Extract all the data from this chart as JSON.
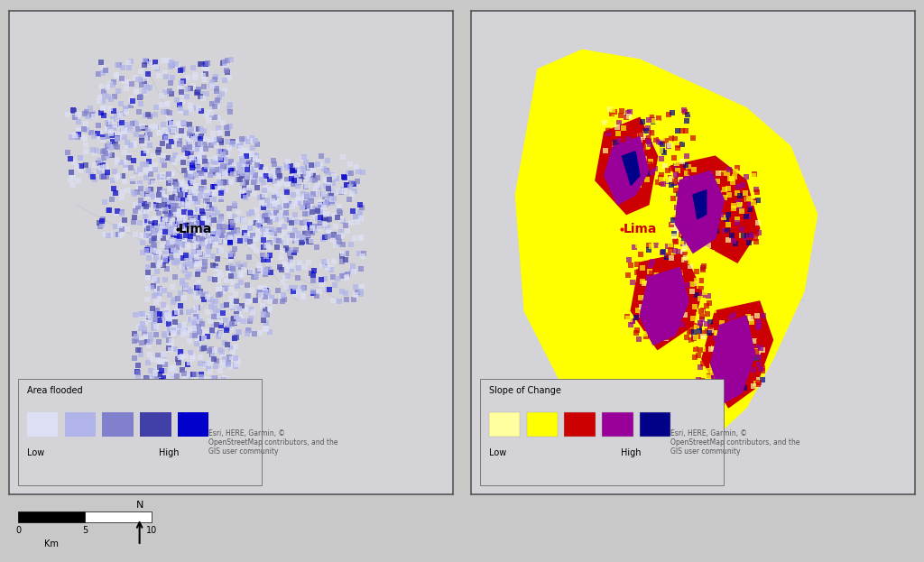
{
  "figure_width": 10.24,
  "figure_height": 6.23,
  "dpi": 100,
  "bg_color": "#c8c8c8",
  "map_bg_color": "#d4d4d8",
  "map_border_color": "#555555",
  "left_map": {
    "title": "",
    "legend_title": "Area flooded",
    "legend_colors": [
      "#dde0f5",
      "#b0b4e8",
      "#8080cc",
      "#4040a8",
      "#0000cc"
    ],
    "legend_low": "Low",
    "legend_high": "High",
    "city_label": "Lima",
    "attribution": "Esri, HERE, Garmin, ©\nOpenStreetMap contributors, and the\nGIS user community"
  },
  "right_map": {
    "title": "",
    "legend_title": "Slope of Change",
    "legend_colors": [
      "#ffffa0",
      "#ffff00",
      "#cc0000",
      "#990099",
      "#000088"
    ],
    "legend_low": "Low",
    "legend_high": "High",
    "city_label": "Lima",
    "attribution": "Esri, HERE, Garmin, ©\nOpenStreetMap contributors, and the\nGIS user community"
  },
  "scale_bar": {
    "ticks": [
      0,
      5,
      10
    ],
    "unit": "Km"
  },
  "seed": 42
}
